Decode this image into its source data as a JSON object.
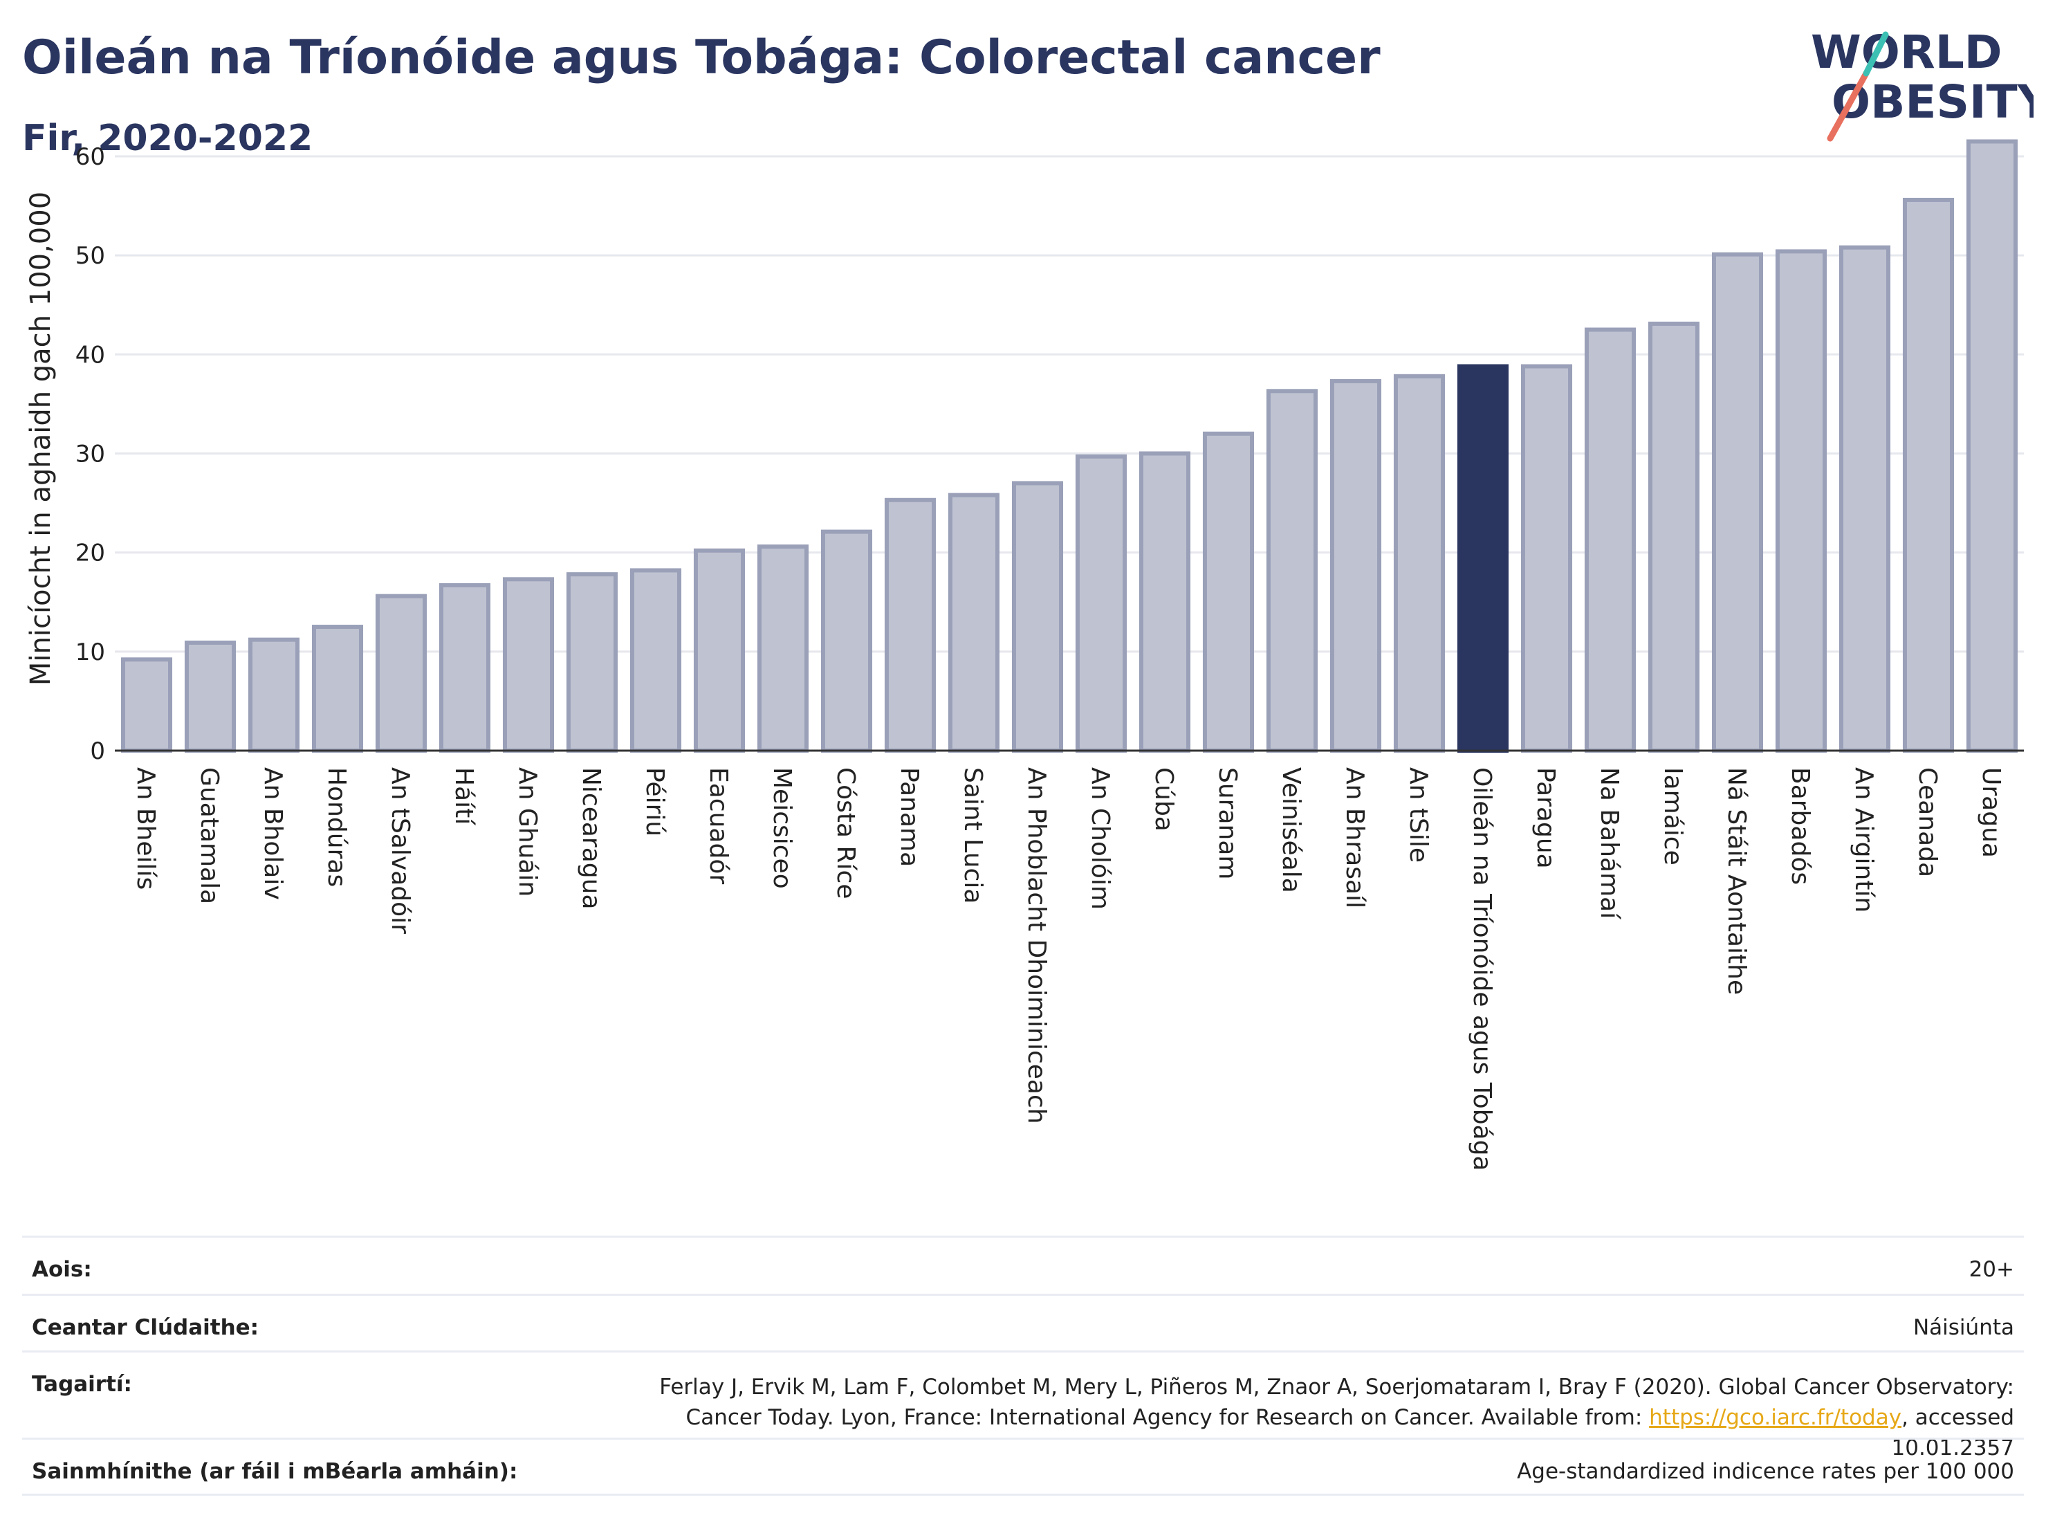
{
  "header": {
    "title": "Oileán na Tríonóide agus Tobága: Colorectal cancer",
    "subtitle": "Fir, 2020-2022"
  },
  "logo": {
    "line1": "WORLD",
    "line2": "OBESITY",
    "text_color": "#2a3560",
    "slash_colors": [
      "#e8705e",
      "#3cc0b4"
    ]
  },
  "chart_data": {
    "type": "bar",
    "title": "Oileán na Tríonóide agus Tobága: Colorectal cancer",
    "subtitle": "Fir, 2020-2022",
    "ylabel": "Minicíocht in aghaidh gach 100,000",
    "xlabel": "",
    "ylim": [
      0,
      63
    ],
    "yticks": [
      0,
      10,
      20,
      30,
      40,
      50,
      60
    ],
    "grid": true,
    "highlight": "Oileán na Tríonóide agus Tobága",
    "colors": {
      "bar": "#bfc3d1",
      "bar_edge": "#9aa0b8",
      "highlight": "#2a3560",
      "grid": "#e6e8ee"
    },
    "categories": [
      "An Bheilís",
      "Guatamala",
      "An Bholaiv",
      "Hondúras",
      "An tSalvadóir",
      "Háítí",
      "An Ghuáin",
      "Nicearagua",
      "Péiriú",
      "Eacuadór",
      "Meicsiceo",
      "Cósta Ríce",
      "Panama",
      "Saint Lucia",
      "An Phoblacht Dhoiminiceach",
      "An Cholóim",
      "Cúba",
      "Suranam",
      "Veiniséala",
      "An Bhrasaíl",
      "An tSile",
      "Oileán na Tríonóide agus Tobága",
      "Paragua",
      "Na Bahámaí",
      "Iamáice",
      "Ná Stáit Aontaithe",
      "Barbadós",
      "An Airgintín",
      "Ceanada",
      "Uragua"
    ],
    "values": [
      9.2,
      10.9,
      11.2,
      12.5,
      15.6,
      16.7,
      17.3,
      17.8,
      18.2,
      20.2,
      20.6,
      22.1,
      25.3,
      25.8,
      27.0,
      29.7,
      30.0,
      32.0,
      36.3,
      37.3,
      37.8,
      38.8,
      38.8,
      42.5,
      43.1,
      50.1,
      50.4,
      50.8,
      55.6,
      61.5
    ]
  },
  "info": {
    "age_label": "Aois:",
    "age_value": "20+",
    "area_label": "Ceantar Clúdaithe:",
    "area_value": "Náisiúnta",
    "ref_label": "Tagairtí:",
    "ref_text": "Ferlay J, Ervik M, Lam F, Colombet M, Mery L, Piñeros M, Znaor A, Soerjomataram I, Bray F (2020). Global Cancer Observatory: Cancer Today. Lyon, France: International Agency for Research on Cancer. Available from: ",
    "ref_link": "https://gco.iarc.fr/today",
    "ref_suffix": ", accessed 10.01.2357",
    "def_label": "Sainmhínithe (ar fáil i mBéarla amháin):",
    "def_value": "Age-standardized indicence rates per 100 000"
  }
}
